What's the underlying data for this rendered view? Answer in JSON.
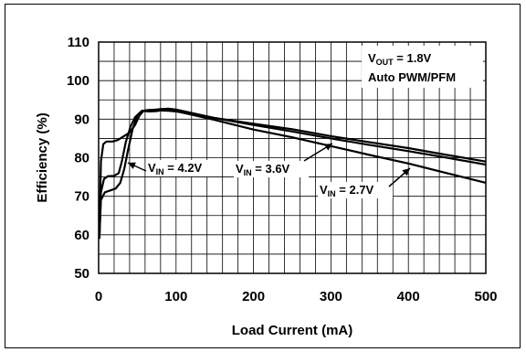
{
  "chart_data": {
    "type": "line",
    "xlabel": "Load Current (mA)",
    "ylabel": "Efficiency (%)",
    "xlim": [
      0,
      500
    ],
    "ylim": [
      50,
      110
    ],
    "x_ticks": [
      0,
      100,
      200,
      300,
      400,
      500
    ],
    "y_ticks": [
      50,
      60,
      70,
      80,
      90,
      100,
      110
    ],
    "x_minor_step": 20,
    "y_minor_step": 5,
    "grid": true,
    "legend": "none",
    "annotations": {
      "conditions": {
        "line1": {
          "main": "V",
          "sub": "OUT",
          "rest": " = 1.8V"
        },
        "line2": "Auto PWM/PFM"
      }
    },
    "series": [
      {
        "label": {
          "main": "V",
          "sub": "IN",
          "rest": " = 4.2V"
        },
        "points": [
          [
            1,
            59
          ],
          [
            3,
            79
          ],
          [
            6,
            83.5
          ],
          [
            10,
            84.2
          ],
          [
            18,
            84.2
          ],
          [
            25,
            84.6
          ],
          [
            32,
            85.5
          ],
          [
            40,
            86.5
          ],
          [
            47,
            88.5
          ],
          [
            53,
            91
          ],
          [
            58,
            92.2
          ],
          [
            65,
            92.4
          ],
          [
            75,
            92.3
          ],
          [
            90,
            92.2
          ],
          [
            100,
            92
          ],
          [
            150,
            90.3
          ],
          [
            200,
            88.8
          ],
          [
            250,
            87.4
          ],
          [
            300,
            85.6
          ],
          [
            350,
            84
          ],
          [
            400,
            82.5
          ],
          [
            450,
            80.7
          ],
          [
            500,
            79
          ]
        ]
      },
      {
        "label": {
          "main": "V",
          "sub": "IN",
          "rest": " = 3.6V"
        },
        "points": [
          [
            1,
            59
          ],
          [
            3,
            71
          ],
          [
            7,
            74.5
          ],
          [
            12,
            75.2
          ],
          [
            20,
            75.3
          ],
          [
            26,
            76
          ],
          [
            30,
            79
          ],
          [
            35,
            84
          ],
          [
            41,
            88
          ],
          [
            47,
            90.5
          ],
          [
            55,
            92
          ],
          [
            65,
            92.3
          ],
          [
            80,
            92.6
          ],
          [
            90,
            92.7
          ],
          [
            100,
            92.5
          ],
          [
            150,
            90.3
          ],
          [
            200,
            88.5
          ],
          [
            250,
            86.8
          ],
          [
            300,
            85
          ],
          [
            350,
            83.3
          ],
          [
            400,
            81.7
          ],
          [
            450,
            80
          ],
          [
            500,
            78.2
          ]
        ]
      },
      {
        "label": {
          "main": "V",
          "sub": "IN",
          "rest": " = 2.7V"
        },
        "points": [
          [
            1,
            59
          ],
          [
            3,
            69
          ],
          [
            8,
            71
          ],
          [
            15,
            71.5
          ],
          [
            22,
            72
          ],
          [
            28,
            73.5
          ],
          [
            33,
            77
          ],
          [
            38,
            82
          ],
          [
            44,
            87.5
          ],
          [
            50,
            91
          ],
          [
            56,
            92.2
          ],
          [
            65,
            92
          ],
          [
            75,
            92.1
          ],
          [
            85,
            92.5
          ],
          [
            95,
            92.3
          ],
          [
            150,
            89.8
          ],
          [
            200,
            87.3
          ],
          [
            250,
            85.3
          ],
          [
            300,
            83
          ],
          [
            350,
            80.7
          ],
          [
            400,
            78.5
          ],
          [
            450,
            76
          ],
          [
            500,
            73.5
          ]
        ]
      }
    ]
  }
}
